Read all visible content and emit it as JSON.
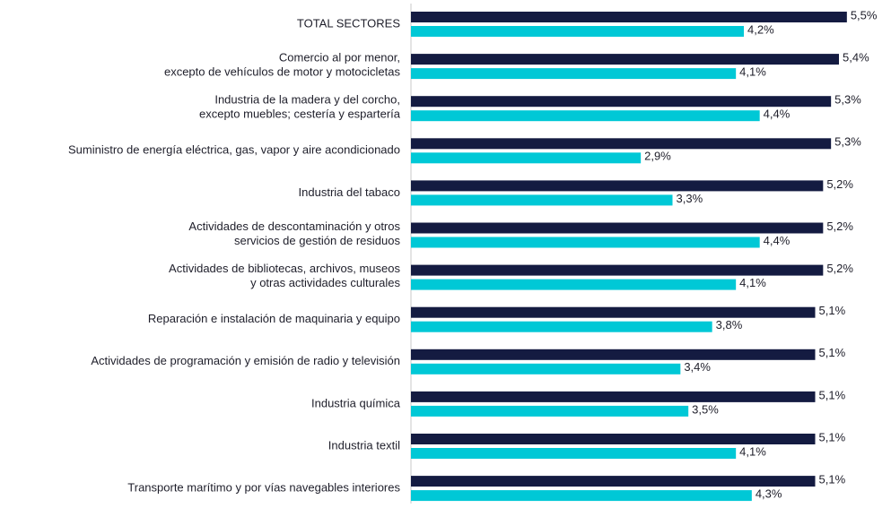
{
  "chart_data": {
    "type": "bar",
    "orientation": "horizontal",
    "categories": [
      [
        "TOTAL SECTORES"
      ],
      [
        "Comercio al por menor,",
        "excepto de vehículos de motor y motocicletas"
      ],
      [
        "Industria de la madera y del corcho,",
        "excepto muebles; cestería y espartería"
      ],
      [
        "Suministro de energía eléctrica, gas, vapor y aire acondicionado"
      ],
      [
        "Industria del tabaco"
      ],
      [
        "Actividades de descontaminación y otros",
        "servicios de gestión de residuos"
      ],
      [
        "Actividades de bibliotecas, archivos, museos",
        "y otras actividades culturales"
      ],
      [
        "Reparación e instalación de maquinaria y equipo"
      ],
      [
        "Actividades de programación y emisión de radio y televisión"
      ],
      [
        "Industria química"
      ],
      [
        "Industria textil"
      ],
      [
        "Transporte marítimo y por vías navegables interiores"
      ]
    ],
    "series": [
      {
        "color": "#141b41",
        "values": [
          5.5,
          5.4,
          5.3,
          5.3,
          5.2,
          5.2,
          5.2,
          5.1,
          5.1,
          5.1,
          5.1,
          5.1
        ],
        "value_labels": [
          "5,5%",
          "5,4%",
          "5,3%",
          "5,3%",
          "5,2%",
          "5,2%",
          "5,2%",
          "5,1%",
          "5,1%",
          "5,1%",
          "5,1%",
          "5,1%"
        ]
      },
      {
        "color": "#00c8d6",
        "values": [
          4.2,
          4.1,
          4.4,
          2.9,
          3.3,
          4.4,
          4.1,
          3.8,
          3.4,
          3.5,
          4.1,
          4.3
        ],
        "value_labels": [
          "4,2%",
          "4,1%",
          "4,4%",
          "2,9%",
          "3,3%",
          "4,4%",
          "4,1%",
          "3,8%",
          "3,4%",
          "3,5%",
          "4,1%",
          "4,3%"
        ]
      }
    ],
    "xlim": [
      0,
      6
    ]
  }
}
